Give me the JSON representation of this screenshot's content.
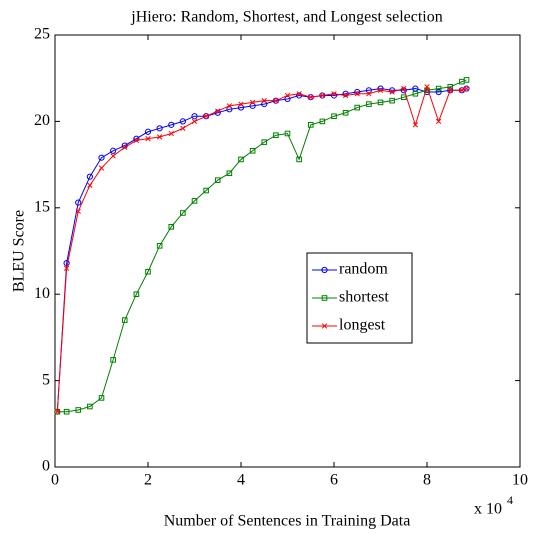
{
  "chart_data": {
    "type": "line",
    "title": "jHiero: Random, Shortest, and Longest selection",
    "xlabel": "Number of Sentences in Training Data",
    "ylabel": "BLEU Score",
    "x_multiplier": "x 10",
    "x_multiplier_exponent": "4",
    "x": [
      0.05,
      0.25,
      0.5,
      0.75,
      1,
      1.25,
      1.5,
      1.75,
      2,
      2.25,
      2.5,
      2.75,
      3,
      3.25,
      3.5,
      3.75,
      4,
      4.25,
      4.5,
      4.75,
      5,
      5.25,
      5.5,
      5.75,
      6,
      6.25,
      6.5,
      6.75,
      7,
      7.25,
      7.5,
      7.75,
      8,
      8.25,
      8.5,
      8.75,
      8.85
    ],
    "series": [
      {
        "name": "random",
        "color": "#0000ff",
        "marker": "circle",
        "values": [
          3.2,
          11.8,
          15.3,
          16.8,
          17.9,
          18.3,
          18.6,
          19.0,
          19.4,
          19.6,
          19.8,
          20.0,
          20.3,
          20.3,
          20.5,
          20.7,
          20.8,
          20.9,
          21.0,
          21.2,
          21.3,
          21.5,
          21.4,
          21.5,
          21.5,
          21.6,
          21.7,
          21.8,
          21.9,
          21.8,
          21.8,
          21.9,
          21.7,
          21.7,
          21.8,
          21.8,
          21.9
        ]
      },
      {
        "name": "shortest",
        "color": "#008000",
        "marker": "square",
        "values": [
          3.2,
          3.2,
          3.3,
          3.5,
          4.0,
          6.2,
          8.5,
          10.0,
          11.3,
          12.8,
          13.9,
          14.7,
          15.4,
          16.0,
          16.6,
          17.0,
          17.8,
          18.3,
          18.8,
          19.2,
          19.3,
          17.8,
          19.8,
          20.0,
          20.3,
          20.5,
          20.8,
          21.0,
          21.1,
          21.2,
          21.4,
          21.6,
          21.8,
          21.9,
          22.0,
          22.3,
          22.4
        ]
      },
      {
        "name": "longest",
        "color": "#ff0000",
        "marker": "x",
        "values": [
          3.2,
          11.5,
          14.8,
          16.3,
          17.3,
          18.0,
          18.5,
          18.9,
          19.0,
          19.1,
          19.3,
          19.6,
          20.0,
          20.3,
          20.6,
          20.9,
          21.0,
          21.1,
          21.2,
          21.2,
          21.5,
          21.6,
          21.4,
          21.5,
          21.6,
          21.5,
          21.6,
          21.6,
          21.8,
          21.7,
          21.9,
          19.8,
          22.0,
          20.0,
          21.8,
          21.8,
          21.9
        ]
      }
    ],
    "xlim": [
      0,
      10
    ],
    "xticks": [
      0,
      2,
      4,
      6,
      8,
      10
    ],
    "ylim": [
      0,
      25
    ],
    "yticks": [
      0,
      5,
      10,
      15,
      20,
      25
    ],
    "grid": false,
    "legend": "center-right"
  }
}
